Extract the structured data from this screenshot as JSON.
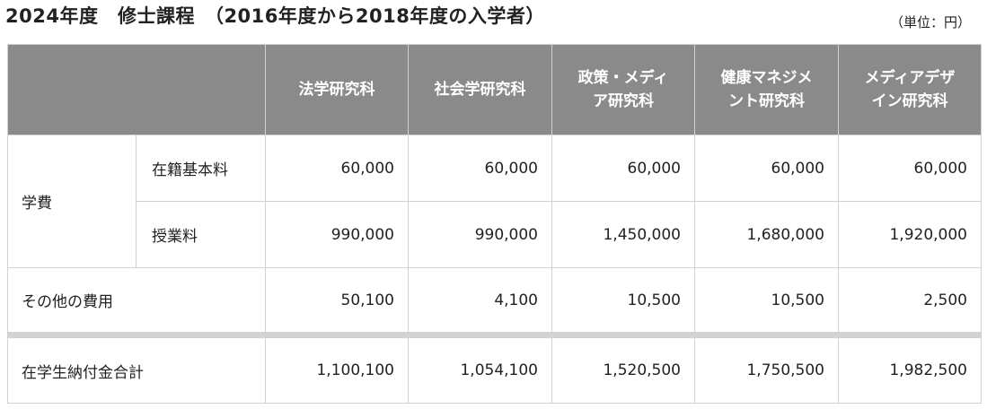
{
  "title": "2024年度　修士課程　（2016年度から2018年度の入学者）",
  "unit": "（単位：円）",
  "table": {
    "columns": [
      "法学研究科",
      "社会学研究科",
      "政策・メディ\nア研究科",
      "健康マネジメ\nント研究科",
      "メディアデザ\nイン研究科"
    ],
    "group_label": "学費",
    "rows": [
      {
        "label": "在籍基本料",
        "values": [
          "60,000",
          "60,000",
          "60,000",
          "60,000",
          "60,000"
        ]
      },
      {
        "label": "授業料",
        "values": [
          "990,000",
          "990,000",
          "1,450,000",
          "1,680,000",
          "1,920,000"
        ]
      },
      {
        "label": "その他の費用",
        "values": [
          "50,100",
          "4,100",
          "10,500",
          "10,500",
          "2,500"
        ]
      }
    ],
    "total": {
      "label": "在学生納付金合計",
      "values": [
        "1,100,100",
        "1,054,100",
        "1,520,500",
        "1,750,500",
        "1,982,500"
      ]
    }
  }
}
